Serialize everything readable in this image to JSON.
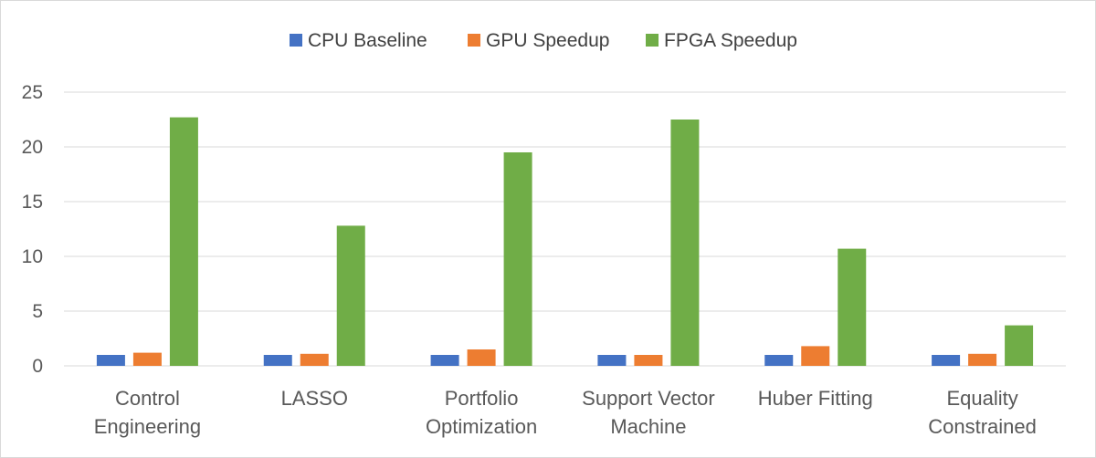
{
  "chart_data": {
    "type": "bar",
    "title": "",
    "xlabel": "",
    "ylabel": "",
    "categories": [
      [
        "Control",
        "Engineering"
      ],
      [
        "LASSO"
      ],
      [
        "Portfolio",
        "Optimization"
      ],
      [
        "Support Vector",
        "Machine"
      ],
      [
        "Huber Fitting"
      ],
      [
        "Equality",
        "Constrained"
      ]
    ],
    "series": [
      {
        "name": "CPU Baseline",
        "color": "#4472C4",
        "values": [
          1,
          1,
          1,
          1,
          1,
          1
        ]
      },
      {
        "name": "GPU Speedup",
        "color": "#ED7D31",
        "values": [
          1.2,
          1.1,
          1.5,
          1.0,
          1.8,
          1.1
        ]
      },
      {
        "name": "FPGA Speedup",
        "color": "#70AD47",
        "values": [
          22.7,
          12.8,
          19.5,
          22.5,
          10.7,
          3.7
        ]
      }
    ],
    "yticks": [
      "0",
      "5",
      "10",
      "15",
      "20",
      "25"
    ],
    "ylim": [
      0,
      25
    ],
    "grid": true,
    "legend": "top-center"
  }
}
